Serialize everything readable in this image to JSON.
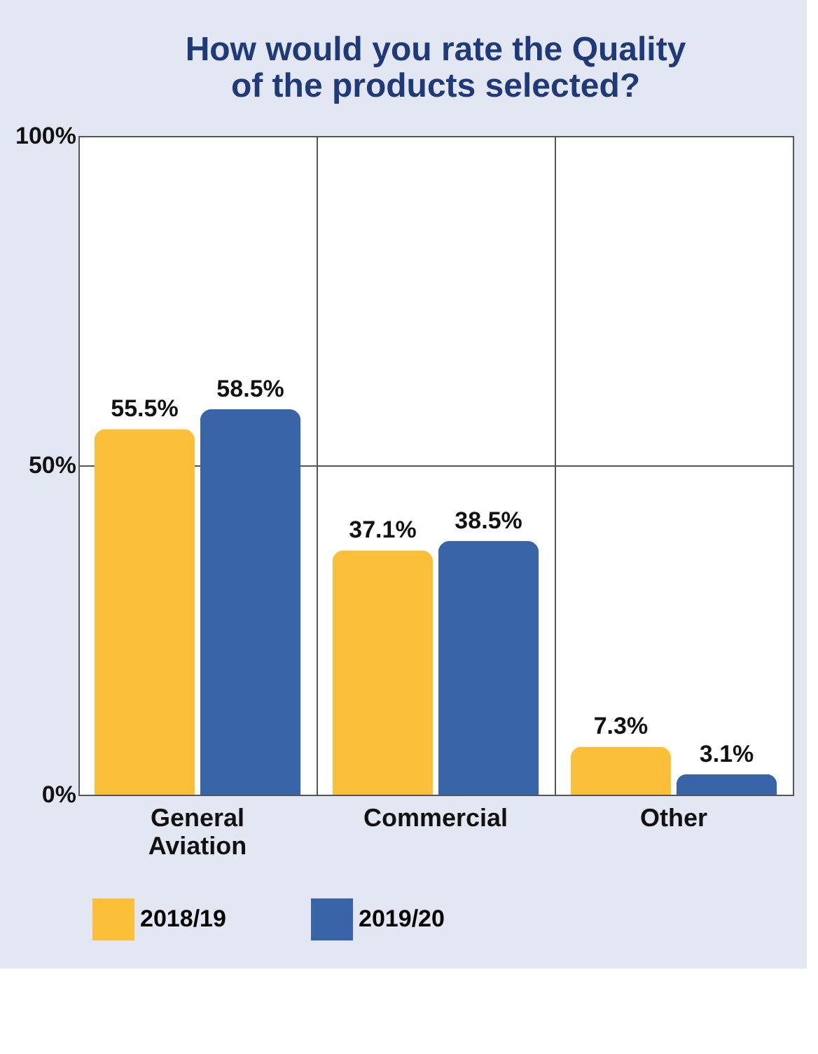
{
  "chart_data": {
    "type": "bar",
    "title": "How would you rate the Quality of the products selected?",
    "categories": [
      "General Aviation",
      "Commercial",
      "Other"
    ],
    "series": [
      {
        "name": "2018/19",
        "color": "#fbbf3a",
        "values": [
          55.5,
          37.1,
          7.3
        ]
      },
      {
        "name": "2019/20",
        "color": "#3a64a8",
        "values": [
          58.5,
          38.5,
          3.1
        ]
      }
    ],
    "value_labels": [
      [
        "55.5%",
        "37.1%",
        "7.3%"
      ],
      [
        "58.5%",
        "38.5%",
        "3.1%"
      ]
    ],
    "ylim": [
      0,
      100
    ],
    "yticks": [
      {
        "value": 0,
        "label": "0%"
      },
      {
        "value": 50,
        "label": "50%"
      },
      {
        "value": 100,
        "label": "100%"
      }
    ],
    "grid": true,
    "legend": "bottom"
  }
}
